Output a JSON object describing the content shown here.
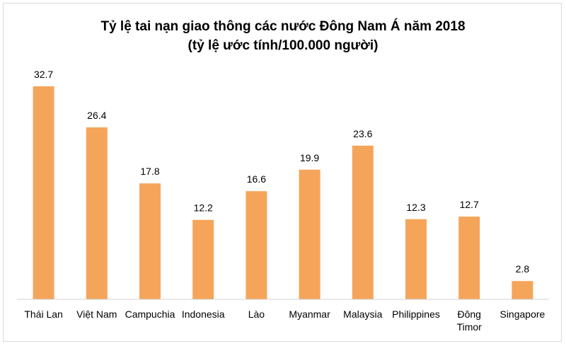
{
  "chart_data": {
    "type": "bar",
    "title_lines": [
      "Tỷ lệ tai nạn giao thông các nước Đông Nam Á năm 2018",
      "(tỷ lệ ước tính/100.000 người)"
    ],
    "categories": [
      [
        "Thái Lan"
      ],
      [
        "Việt Nam"
      ],
      [
        "Campuchia"
      ],
      [
        "Indonesia"
      ],
      [
        "Lào"
      ],
      [
        "Myanmar"
      ],
      [
        "Malaysia"
      ],
      [
        "Philippines"
      ],
      [
        "Đông",
        "Timor"
      ],
      [
        "Singapore"
      ]
    ],
    "values": [
      32.7,
      26.4,
      17.8,
      12.2,
      16.6,
      19.9,
      23.6,
      12.3,
      12.7,
      2.8
    ],
    "value_labels": [
      "32.7",
      "26.4",
      "17.8",
      "12.2",
      "16.6",
      "19.9",
      "23.6",
      "12.3",
      "12.7",
      "2.8"
    ],
    "ylim": [
      0,
      32.7
    ],
    "bar_color": "#f5a55a",
    "grid": false,
    "legend": "none"
  }
}
